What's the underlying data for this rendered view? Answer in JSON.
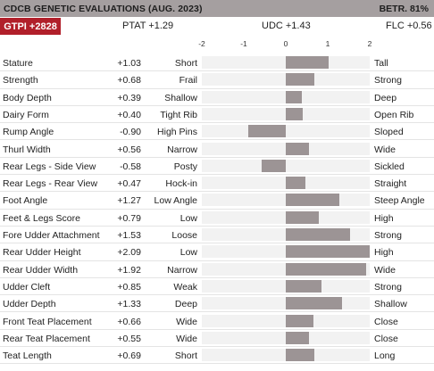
{
  "header": {
    "title": "CDCB GENETIC EVALUATIONS (AUG. 2023)",
    "reliability": "BETR. 81%"
  },
  "summary": {
    "gtpi": "GTPI +2828",
    "ptat": "PTAT +1.29",
    "udc": "UDC +1.43",
    "flc": "FLC +0.56"
  },
  "colors": {
    "bar": "#9c9495",
    "header_bg": "#a59fa0",
    "gtpi_bg": "#b11f2a"
  },
  "chart_data": {
    "type": "bar",
    "orientation": "horizontal",
    "xlim": [
      -2,
      2
    ],
    "ticks": [
      "-2",
      "-1",
      "0",
      "1",
      "2"
    ],
    "tick_values": [
      -2,
      -1,
      0,
      1,
      2
    ],
    "rows": [
      {
        "trait": "Stature",
        "display": "+1.03",
        "value": 1.03,
        "low": "Short",
        "high": "Tall"
      },
      {
        "trait": "Strength",
        "display": "+0.68",
        "value": 0.68,
        "low": "Frail",
        "high": "Strong"
      },
      {
        "trait": "Body Depth",
        "display": "+0.39",
        "value": 0.39,
        "low": "Shallow",
        "high": "Deep"
      },
      {
        "trait": "Dairy Form",
        "display": "+0.40",
        "value": 0.4,
        "low": "Tight Rib",
        "high": "Open Rib"
      },
      {
        "trait": "Rump Angle",
        "display": "-0.90",
        "value": -0.9,
        "low": "High Pins",
        "high": "Sloped"
      },
      {
        "trait": "Thurl Width",
        "display": "+0.56",
        "value": 0.56,
        "low": "Narrow",
        "high": "Wide"
      },
      {
        "trait": "Rear Legs - Side View",
        "display": "-0.58",
        "value": -0.58,
        "low": "Posty",
        "high": "Sickled"
      },
      {
        "trait": "Rear Legs - Rear View",
        "display": "+0.47",
        "value": 0.47,
        "low": "Hock-in",
        "high": "Straight"
      },
      {
        "trait": "Foot Angle",
        "display": "+1.27",
        "value": 1.27,
        "low": "Low Angle",
        "high": "Steep Angle"
      },
      {
        "trait": "Feet & Legs Score",
        "display": "+0.79",
        "value": 0.79,
        "low": "Low",
        "high": "High"
      },
      {
        "trait": "Fore Udder Attachment",
        "display": "+1.53",
        "value": 1.53,
        "low": "Loose",
        "high": "Strong"
      },
      {
        "trait": "Rear Udder Height",
        "display": "+2.09",
        "value": 2.09,
        "low": "Low",
        "high": "High"
      },
      {
        "trait": "Rear Udder Width",
        "display": "+1.92",
        "value": 1.92,
        "low": "Narrow",
        "high": "Wide"
      },
      {
        "trait": "Udder Cleft",
        "display": "+0.85",
        "value": 0.85,
        "low": "Weak",
        "high": "Strong"
      },
      {
        "trait": "Udder Depth",
        "display": "+1.33",
        "value": 1.33,
        "low": "Deep",
        "high": "Shallow"
      },
      {
        "trait": "Front Teat Placement",
        "display": "+0.66",
        "value": 0.66,
        "low": "Wide",
        "high": "Close"
      },
      {
        "trait": "Rear Teat Placement",
        "display": "+0.55",
        "value": 0.55,
        "low": "Wide",
        "high": "Close"
      },
      {
        "trait": "Teat Length",
        "display": "+0.69",
        "value": 0.69,
        "low": "Short",
        "high": "Long"
      }
    ]
  }
}
